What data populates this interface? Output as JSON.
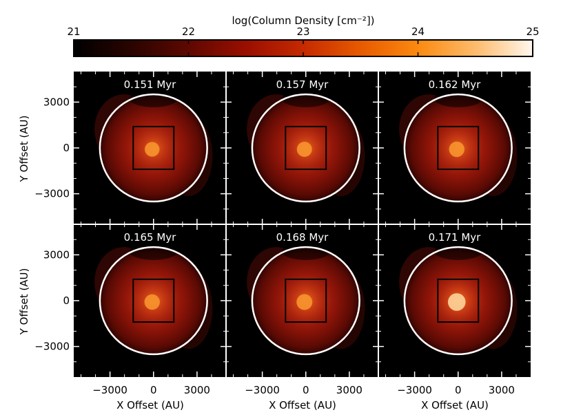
{
  "colorbar": {
    "title": "log(Column Density [cm⁻²])",
    "min": 21,
    "max": 25,
    "ticks": [
      "21",
      "22",
      "23",
      "24",
      "25"
    ],
    "colors": [
      "#000000",
      "#2a0400",
      "#5e0800",
      "#9a0e00",
      "#c52a00",
      "#e85a00",
      "#fb8a10",
      "#fdbb6c",
      "#fff7ee"
    ]
  },
  "chart_data": {
    "type": "heatmap",
    "layout": "2x3 grid of column density projections",
    "xlabel": "X Offset (AU)",
    "ylabel": "Y Offset (AU)",
    "xlim": [
      -5500,
      5000
    ],
    "ylim": [
      -5000,
      5000
    ],
    "xticks": [
      -3000,
      0,
      3000
    ],
    "yticks": [
      -3000,
      0,
      3000
    ],
    "xtick_labels": [
      "−3000",
      "0",
      "3000"
    ],
    "ytick_labels": [
      "−3000",
      "0",
      "3000"
    ],
    "circle_radius_au": 3700,
    "box_half_width_au": 1400,
    "panels": [
      {
        "time": "0.151 Myr",
        "peak_log_density": 23.5
      },
      {
        "time": "0.157 Myr",
        "peak_log_density": 23.6
      },
      {
        "time": "0.162 Myr",
        "peak_log_density": 23.7
      },
      {
        "time": "0.165 Myr",
        "peak_log_density": 23.7
      },
      {
        "time": "0.168 Myr",
        "peak_log_density": 23.8
      },
      {
        "time": "0.171 Myr",
        "peak_log_density": 24.3
      }
    ]
  }
}
